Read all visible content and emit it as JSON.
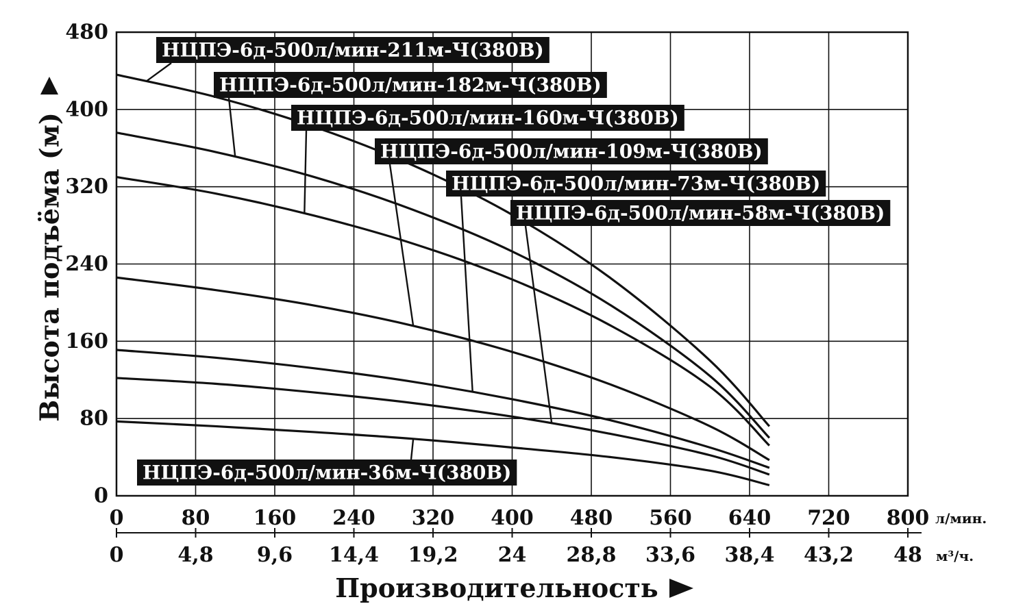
{
  "chart_data": {
    "type": "line",
    "title": "",
    "ylabel": "Высота подъёма (м)",
    "xlabel": "Производительность",
    "x_unit_primary": "л/мин.",
    "x_unit_secondary": "м³/ч.",
    "ylim": [
      0,
      480
    ],
    "xlim": [
      0,
      800
    ],
    "y_ticks": [
      "0",
      "80",
      "160",
      "240",
      "320",
      "400",
      "480"
    ],
    "x_ticks_lpm": [
      "0",
      "80",
      "160",
      "240",
      "320",
      "400",
      "480",
      "560",
      "640",
      "720",
      "800"
    ],
    "x_ticks_m3h": [
      "0",
      "4,8",
      "9,6",
      "14,4",
      "19,2",
      "24",
      "28,8",
      "33,6",
      "38,4",
      "43,2",
      "48"
    ],
    "grid": true,
    "x": [
      0,
      100,
      200,
      300,
      400,
      500,
      600,
      660
    ],
    "series": [
      {
        "name": "НЦПЭ-6д-500л/мин-211м-Ч(380В)",
        "values": [
          436,
          413,
          382,
          342,
          291,
          225,
          140,
          72
        ]
      },
      {
        "name": "НЦПЭ-6д-500л/мин-182м-Ч(380В)",
        "values": [
          376,
          356,
          330,
          296,
          253,
          197,
          124,
          60
        ]
      },
      {
        "name": "НЦПЭ-6д-500л/мин-160м-Ч(380В)",
        "values": [
          330,
          313,
          290,
          261,
          224,
          176,
          113,
          52
        ]
      },
      {
        "name": "НЦПЭ-6д-500л/мин-109м-Ч(380В)",
        "values": [
          226,
          213,
          197,
          176,
          149,
          115,
          72,
          37
        ]
      },
      {
        "name": "НЦПЭ-6д-500л/мин-73м-Ч(380В)",
        "values": [
          151,
          143,
          132,
          118,
          100,
          78,
          50,
          29
        ]
      },
      {
        "name": "НЦПЭ-6д-500л/мин-58м-Ч(380В)",
        "values": [
          122,
          116,
          107,
          96,
          82,
          64,
          42,
          22
        ]
      },
      {
        "name": "НЦПЭ-6д-500л/мин-36м-Ч(380В)",
        "values": [
          77,
          72,
          66,
          59,
          50,
          40,
          26,
          11
        ]
      }
    ]
  }
}
